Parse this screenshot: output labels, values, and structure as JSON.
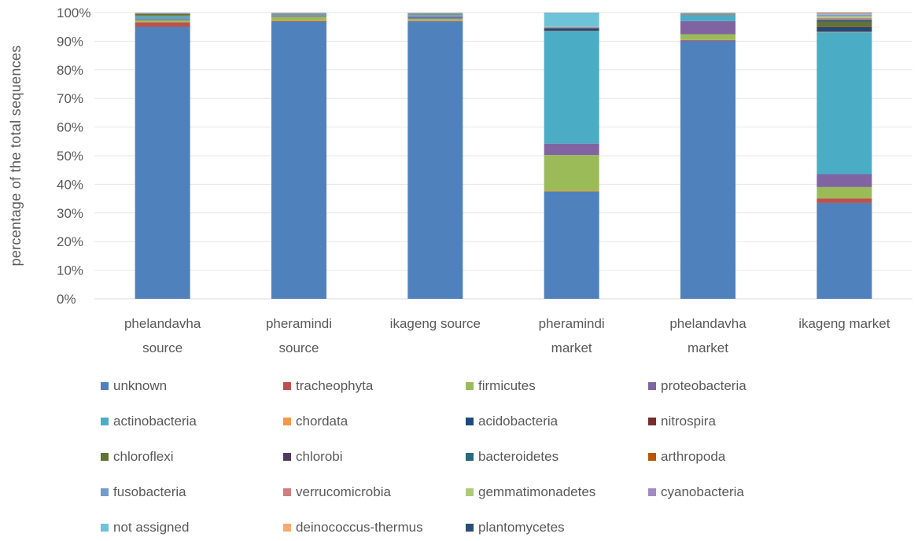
{
  "chart_data": {
    "type": "bar",
    "stacked": true,
    "percent": true,
    "ylabel": "percentage of the total sequences",
    "xlabel": "",
    "title": "",
    "ylim": [
      0,
      100
    ],
    "yticks": [
      "0%",
      "10%",
      "20%",
      "30%",
      "40%",
      "50%",
      "60%",
      "70%",
      "80%",
      "90%",
      "100%"
    ],
    "grid": true,
    "legend_position": "bottom",
    "categories": [
      [
        "phelandavha",
        "source"
      ],
      [
        "pheramindi",
        "source"
      ],
      [
        "ikageng source"
      ],
      [
        "pheramindi",
        "market"
      ],
      [
        "phelandavha",
        "market"
      ],
      [
        "ikageng  market"
      ]
    ],
    "series": [
      {
        "name": "unknown",
        "color": "#4f81bd",
        "values": [
          95.2,
          97.0,
          97.0,
          37.5,
          90.5,
          33.5
        ]
      },
      {
        "name": "tracheophyta",
        "color": "#c0504d",
        "values": [
          1.5,
          0.3,
          0.2,
          0.2,
          0.3,
          1.5
        ]
      },
      {
        "name": "firmicutes",
        "color": "#9bbb59",
        "values": [
          0.8,
          1.5,
          0.8,
          12.7,
          2.0,
          4.0
        ]
      },
      {
        "name": "proteobacteria",
        "color": "#8064a2",
        "values": [
          0.4,
          0.3,
          0.7,
          4.0,
          4.6,
          4.5
        ]
      },
      {
        "name": "actinobacteria",
        "color": "#4bacc6",
        "values": [
          0.9,
          0.4,
          0.6,
          39.4,
          2.2,
          49.5
        ]
      },
      {
        "name": "chordata",
        "color": "#f79646",
        "values": [
          0.1,
          0.1,
          0.1,
          0.1,
          0.1,
          0.2
        ]
      },
      {
        "name": "acidobacteria",
        "color": "#1f497d",
        "values": [
          0.1,
          0.1,
          0.1,
          0.8,
          0.1,
          1.5
        ]
      },
      {
        "name": "nitrospira",
        "color": "#772c2a",
        "values": [
          0.1,
          0.05,
          0.05,
          0.1,
          0.05,
          0.3
        ]
      },
      {
        "name": "chloroflexi",
        "color": "#5f7530",
        "values": [
          0.5,
          0.05,
          0.1,
          0.1,
          0.05,
          1.5
        ]
      },
      {
        "name": "chlorobi",
        "color": "#4d3b62",
        "values": [
          0.05,
          0.05,
          0.05,
          0.1,
          0.05,
          0.3
        ]
      },
      {
        "name": "bacteroidetes",
        "color": "#276a7c",
        "values": [
          0.1,
          0.05,
          0.05,
          0.1,
          0.05,
          0.5
        ]
      },
      {
        "name": "arthropoda",
        "color": "#b65708",
        "values": [
          0.05,
          0.05,
          0.05,
          0.05,
          0.05,
          0.2
        ]
      },
      {
        "name": "fusobacteria",
        "color": "#729aca",
        "values": [
          0.05,
          0.05,
          0.05,
          0.05,
          0.05,
          0.2
        ]
      },
      {
        "name": "verrucomicrobia",
        "color": "#d07e7c",
        "values": [
          0.05,
          0.05,
          0.05,
          0.05,
          0.05,
          0.3
        ]
      },
      {
        "name": "gemmatimonadetes",
        "color": "#afc97a",
        "values": [
          0.05,
          0.05,
          0.05,
          0.1,
          0.05,
          0.6
        ]
      },
      {
        "name": "cyanobacteria",
        "color": "#a08cc0",
        "values": [
          0.05,
          0.05,
          0.05,
          0.1,
          0.05,
          0.5
        ]
      },
      {
        "name": "not assigned",
        "color": "#6ec3d9",
        "values": [
          0.05,
          0.05,
          0.05,
          4.8,
          0.05,
          0.3
        ]
      },
      {
        "name": "deinococcus-thermus",
        "color": "#f9ab6e",
        "values": [
          0.05,
          0.05,
          0.05,
          0.05,
          0.05,
          0.3
        ]
      },
      {
        "name": "plantomycetes",
        "color": "#2c4d75",
        "values": [
          0.05,
          0.05,
          0.05,
          0.05,
          0.05,
          0.2
        ]
      }
    ]
  }
}
